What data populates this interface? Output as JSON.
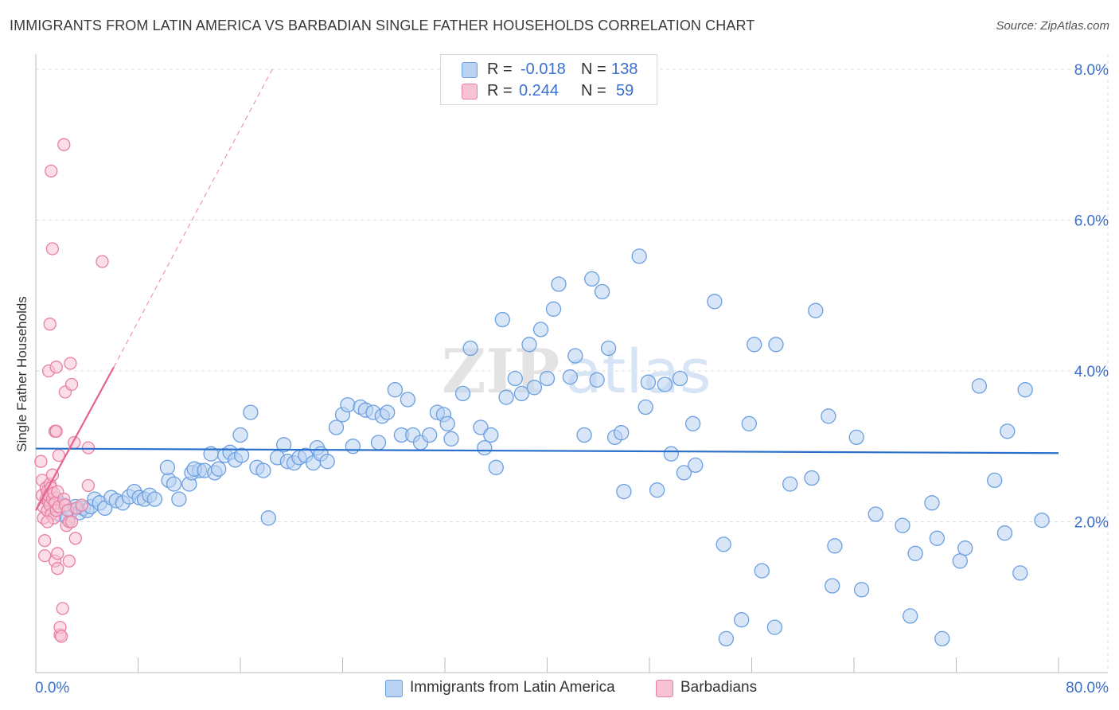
{
  "title": "IMMIGRANTS FROM LATIN AMERICA VS BARBADIAN SINGLE FATHER HOUSEHOLDS CORRELATION CHART",
  "source": "Source: ZipAtlas.com",
  "watermark": {
    "zip": "ZIP",
    "atlas": "atlas"
  },
  "legend": {
    "r_label": "R =",
    "n_label": "N =",
    "rows": [
      {
        "r": "-0.018",
        "n": "138",
        "color": "#6a9fe0",
        "fill": "#b9d2f3"
      },
      {
        "r": "0.244",
        "n": "59",
        "color": "#e97fa2",
        "fill": "#f7c3d3"
      }
    ]
  },
  "bottom_legend": [
    "Immigrants from Latin America",
    "Barbadians"
  ],
  "chart_data": {
    "type": "scatter",
    "title": "IMMIGRANTS FROM LATIN AMERICA VS BARBADIAN SINGLE FATHER HOUSEHOLDS CORRELATION CHART",
    "xlabel": "",
    "ylabel": "Single Father Households",
    "xlim": [
      0,
      80
    ],
    "ylim": [
      0,
      8.2
    ],
    "x_tick_labels": [
      "0.0%",
      "80.0%"
    ],
    "y_ticks": [
      2,
      4,
      6,
      8
    ],
    "y_tick_labels": [
      "2.0%",
      "4.0%",
      "6.0%",
      "8.0%"
    ],
    "grid": true,
    "legend_position": "top-center",
    "series": [
      {
        "name": "Immigrants from Latin America",
        "color": "#6a9fe0",
        "fill": "#b9d2f3",
        "trend": {
          "x": [
            0,
            80
          ],
          "y": [
            2.97,
            2.91
          ],
          "style": "solid",
          "color": "#2b6fcc"
        },
        "points": [
          [
            1.2,
            2.25
          ],
          [
            1.6,
            2.3
          ],
          [
            1.9,
            2.1
          ],
          [
            2.2,
            2.22
          ],
          [
            2.5,
            2.05
          ],
          [
            2.8,
            2.15
          ],
          [
            3.1,
            2.2
          ],
          [
            3.4,
            2.12
          ],
          [
            3.7,
            2.18
          ],
          [
            4.0,
            2.15
          ],
          [
            4.3,
            2.2
          ],
          [
            4.6,
            2.3
          ],
          [
            5.0,
            2.25
          ],
          [
            5.4,
            2.18
          ],
          [
            5.9,
            2.32
          ],
          [
            6.3,
            2.28
          ],
          [
            6.8,
            2.25
          ],
          [
            7.3,
            2.33
          ],
          [
            7.7,
            2.4
          ],
          [
            8.1,
            2.32
          ],
          [
            8.5,
            2.3
          ],
          [
            8.9,
            2.35
          ],
          [
            9.3,
            2.3
          ],
          [
            10.4,
            2.55
          ],
          [
            10.3,
            2.72
          ],
          [
            10.8,
            2.5
          ],
          [
            11.2,
            2.3
          ],
          [
            12.0,
            2.5
          ],
          [
            12.2,
            2.65
          ],
          [
            12.8,
            2.68
          ],
          [
            12.4,
            2.7
          ],
          [
            13.2,
            2.68
          ],
          [
            14.0,
            2.65
          ],
          [
            14.3,
            2.7
          ],
          [
            13.7,
            2.9
          ],
          [
            14.8,
            2.88
          ],
          [
            15.2,
            2.92
          ],
          [
            15.6,
            2.82
          ],
          [
            16.1,
            2.88
          ],
          [
            16.0,
            3.15
          ],
          [
            16.8,
            3.45
          ],
          [
            17.3,
            2.72
          ],
          [
            17.8,
            2.68
          ],
          [
            18.2,
            2.05
          ],
          [
            18.9,
            2.85
          ],
          [
            19.4,
            3.02
          ],
          [
            19.7,
            2.8
          ],
          [
            20.2,
            2.78
          ],
          [
            20.6,
            2.85
          ],
          [
            21.1,
            2.88
          ],
          [
            21.7,
            2.78
          ],
          [
            22.0,
            2.98
          ],
          [
            22.3,
            2.9
          ],
          [
            22.8,
            2.8
          ],
          [
            23.5,
            3.25
          ],
          [
            24.0,
            3.42
          ],
          [
            24.4,
            3.55
          ],
          [
            24.8,
            3.0
          ],
          [
            25.4,
            3.52
          ],
          [
            25.8,
            3.48
          ],
          [
            26.4,
            3.45
          ],
          [
            26.8,
            3.05
          ],
          [
            27.1,
            3.4
          ],
          [
            27.5,
            3.45
          ],
          [
            28.1,
            3.75
          ],
          [
            28.6,
            3.15
          ],
          [
            29.1,
            3.62
          ],
          [
            29.5,
            3.15
          ],
          [
            30.1,
            3.05
          ],
          [
            30.8,
            3.15
          ],
          [
            31.4,
            3.45
          ],
          [
            31.9,
            3.42
          ],
          [
            32.2,
            3.3
          ],
          [
            32.5,
            3.1
          ],
          [
            33.4,
            3.7
          ],
          [
            34.0,
            4.3
          ],
          [
            34.8,
            3.25
          ],
          [
            35.1,
            2.98
          ],
          [
            35.6,
            3.15
          ],
          [
            36.0,
            2.72
          ],
          [
            36.5,
            4.68
          ],
          [
            36.8,
            3.65
          ],
          [
            37.5,
            3.9
          ],
          [
            38.0,
            3.7
          ],
          [
            38.6,
            4.35
          ],
          [
            39.0,
            3.78
          ],
          [
            39.5,
            4.55
          ],
          [
            40.0,
            3.9
          ],
          [
            40.5,
            4.82
          ],
          [
            40.9,
            5.15
          ],
          [
            41.8,
            3.92
          ],
          [
            42.2,
            4.2
          ],
          [
            42.9,
            3.15
          ],
          [
            43.5,
            5.22
          ],
          [
            43.9,
            3.88
          ],
          [
            44.3,
            5.05
          ],
          [
            44.8,
            4.3
          ],
          [
            45.3,
            3.12
          ],
          [
            45.8,
            3.18
          ],
          [
            46.0,
            2.4
          ],
          [
            47.2,
            5.52
          ],
          [
            47.7,
            3.52
          ],
          [
            47.9,
            3.85
          ],
          [
            48.6,
            2.42
          ],
          [
            49.2,
            3.82
          ],
          [
            49.7,
            2.9
          ],
          [
            50.4,
            3.9
          ],
          [
            50.7,
            2.65
          ],
          [
            51.4,
            3.3
          ],
          [
            51.6,
            2.75
          ],
          [
            53.1,
            4.92
          ],
          [
            53.8,
            1.7
          ],
          [
            54.0,
            0.45
          ],
          [
            55.2,
            0.7
          ],
          [
            55.8,
            3.3
          ],
          [
            56.2,
            4.35
          ],
          [
            56.8,
            1.35
          ],
          [
            57.8,
            0.6
          ],
          [
            57.9,
            4.35
          ],
          [
            59.0,
            2.5
          ],
          [
            60.7,
            2.58
          ],
          [
            61.0,
            4.8
          ],
          [
            62.0,
            3.4
          ],
          [
            62.3,
            1.15
          ],
          [
            62.5,
            1.68
          ],
          [
            64.2,
            3.12
          ],
          [
            64.6,
            1.1
          ],
          [
            65.7,
            2.1
          ],
          [
            67.8,
            1.95
          ],
          [
            68.4,
            0.75
          ],
          [
            68.8,
            1.58
          ],
          [
            70.1,
            2.25
          ],
          [
            70.5,
            1.78
          ],
          [
            70.9,
            0.45
          ],
          [
            72.3,
            1.48
          ],
          [
            72.7,
            1.65
          ],
          [
            73.8,
            3.8
          ],
          [
            75.0,
            2.55
          ],
          [
            75.8,
            1.85
          ],
          [
            76.0,
            3.2
          ],
          [
            77.0,
            1.32
          ],
          [
            77.4,
            3.75
          ],
          [
            78.7,
            2.02
          ]
        ]
      },
      {
        "name": "Barbadians",
        "color": "#e97fa2",
        "fill": "#f7c3d3",
        "trend": {
          "x": [
            0,
            6.1
          ],
          "y": [
            2.15,
            4.05
          ],
          "style": "solid",
          "color": "#e5628f",
          "extension": {
            "x": [
              6.1,
              18.5
            ],
            "y": [
              4.05,
              8.0
            ],
            "style": "dashed"
          }
        },
        "points": [
          [
            0.4,
            2.8
          ],
          [
            0.5,
            2.55
          ],
          [
            0.5,
            2.35
          ],
          [
            0.6,
            2.2
          ],
          [
            0.6,
            2.05
          ],
          [
            0.7,
            1.75
          ],
          [
            0.7,
            1.55
          ],
          [
            0.8,
            2.45
          ],
          [
            0.8,
            2.3
          ],
          [
            0.9,
            2.15
          ],
          [
            0.9,
            2.4
          ],
          [
            1.0,
            2.28
          ],
          [
            1.0,
            2.35
          ],
          [
            1.1,
            2.22
          ],
          [
            1.1,
            2.5
          ],
          [
            1.2,
            2.1
          ],
          [
            1.2,
            2.45
          ],
          [
            1.3,
            2.3
          ],
          [
            1.3,
            2.62
          ],
          [
            1.4,
            2.38
          ],
          [
            1.4,
            2.05
          ],
          [
            1.5,
            2.25
          ],
          [
            1.5,
            1.48
          ],
          [
            1.6,
            2.15
          ],
          [
            1.7,
            2.4
          ],
          [
            1.7,
            1.58
          ],
          [
            1.8,
            2.2
          ],
          [
            1.8,
            2.88
          ],
          [
            1.9,
            0.5
          ],
          [
            1.9,
            0.6
          ],
          [
            2.0,
            0.48
          ],
          [
            2.1,
            0.85
          ],
          [
            2.2,
            2.3
          ],
          [
            2.3,
            2.22
          ],
          [
            2.4,
            1.95
          ],
          [
            2.5,
            2.15
          ],
          [
            2.6,
            2.0
          ],
          [
            1.0,
            4.0
          ],
          [
            1.1,
            4.62
          ],
          [
            1.2,
            6.65
          ],
          [
            1.3,
            5.62
          ],
          [
            1.5,
            3.2
          ],
          [
            1.6,
            4.05
          ],
          [
            1.6,
            3.2
          ],
          [
            2.2,
            7.0
          ],
          [
            2.3,
            3.72
          ],
          [
            2.7,
            4.1
          ],
          [
            2.8,
            3.82
          ],
          [
            2.8,
            2.0
          ],
          [
            3.0,
            3.05
          ],
          [
            3.1,
            1.78
          ],
          [
            3.2,
            2.18
          ],
          [
            3.6,
            2.22
          ],
          [
            4.1,
            2.98
          ],
          [
            4.1,
            2.48
          ],
          [
            5.2,
            5.45
          ],
          [
            1.7,
            1.38
          ],
          [
            2.6,
            1.48
          ],
          [
            0.9,
            2.0
          ]
        ]
      }
    ]
  }
}
